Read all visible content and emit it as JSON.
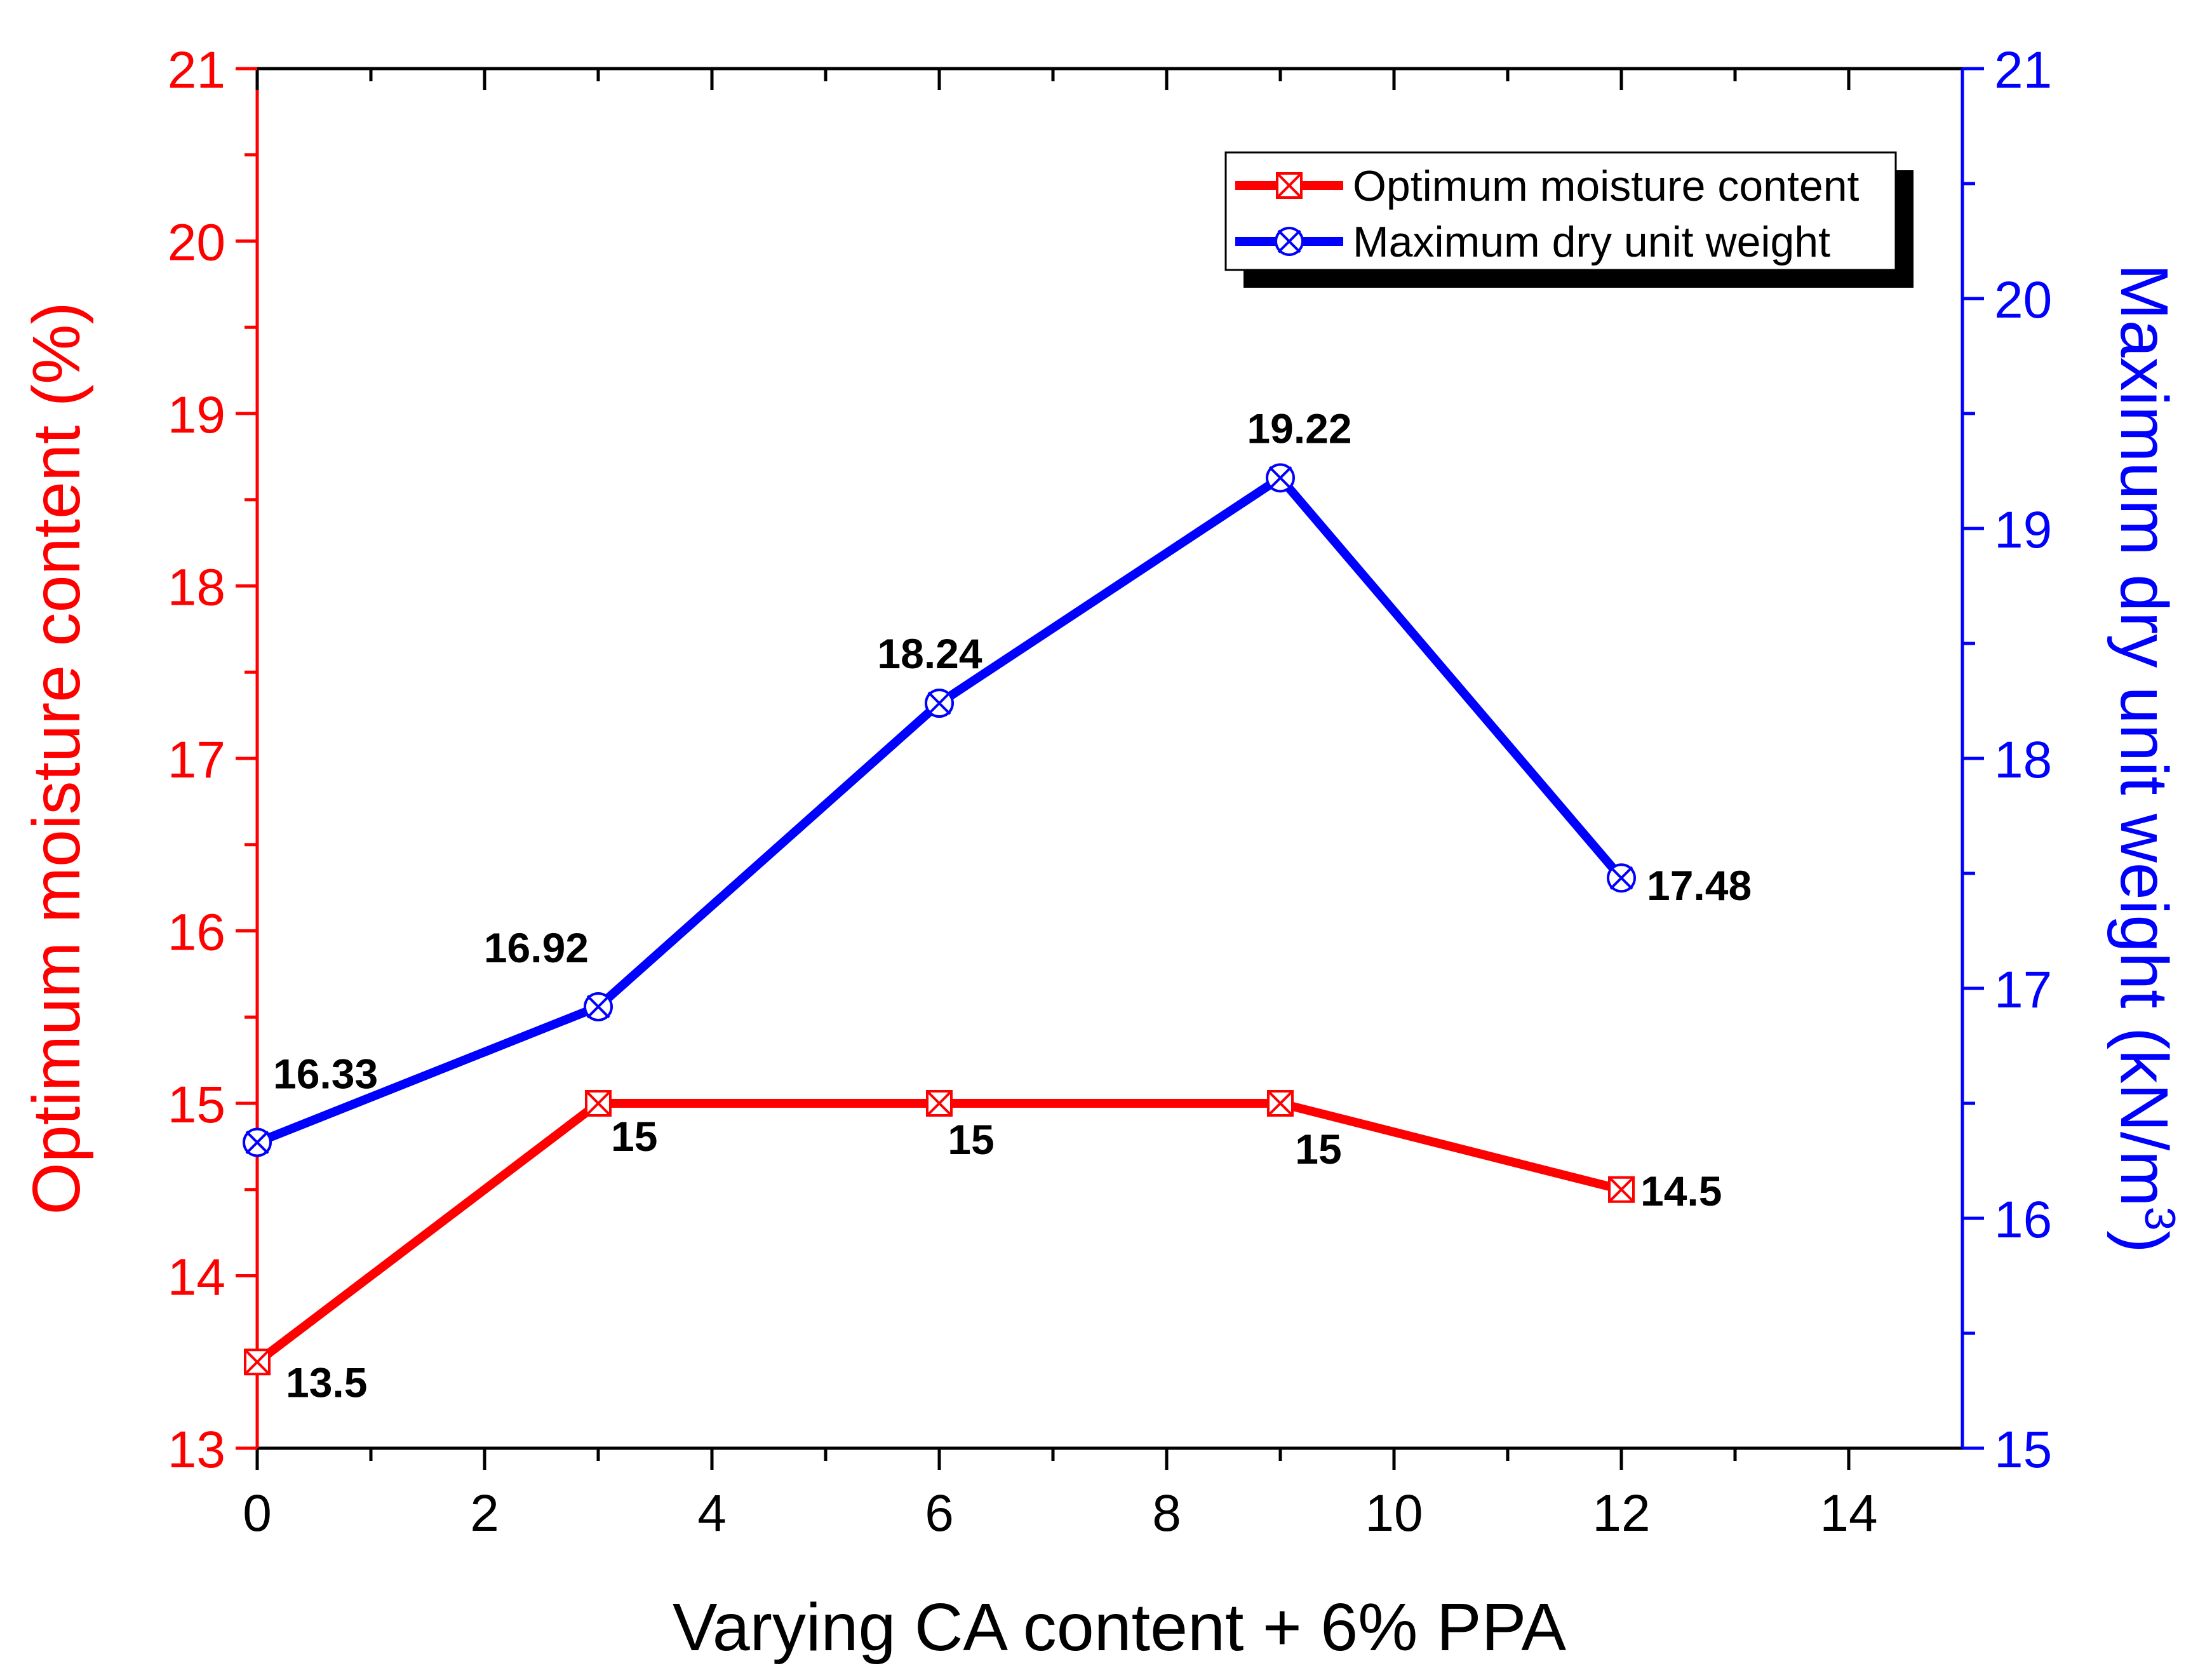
{
  "chart_data": {
    "type": "line",
    "xlabel": "Varying CA content + 6% PPA",
    "ylabel_left": "Optimum moisture content (%)",
    "ylabel_right_prefix": "Maximum dry unit weight (kN/m",
    "ylabel_right_sup": "3",
    "ylabel_right_suffix": ")",
    "xlim": [
      0,
      15
    ],
    "ylim_left": [
      13,
      21
    ],
    "ylim_right": [
      15,
      21
    ],
    "x_ticks": [
      0,
      2,
      4,
      6,
      8,
      10,
      12,
      14
    ],
    "x_tick_labels": [
      "0",
      "2",
      "4",
      "6",
      "8",
      "10",
      "12",
      "14"
    ],
    "y_left_ticks": [
      13,
      14,
      15,
      16,
      17,
      18,
      19,
      20,
      21
    ],
    "y_left_tick_labels": [
      "13",
      "14",
      "15",
      "16",
      "17",
      "18",
      "19",
      "20",
      "21"
    ],
    "y_right_ticks": [
      15,
      16,
      17,
      18,
      19,
      20,
      21
    ],
    "y_right_tick_labels": [
      "15",
      "16",
      "17",
      "18",
      "19",
      "20",
      "21"
    ],
    "grid": false,
    "legend_position": "top-right",
    "series": [
      {
        "name": "Optimum moisture content",
        "axis": "left",
        "color": "#ff0000",
        "marker": "square-x",
        "x": [
          0,
          3,
          6,
          9,
          12
        ],
        "y": [
          13.5,
          15,
          15,
          15,
          14.5
        ],
        "labels": [
          "13.5",
          "15",
          "15",
          "15",
          "14.5"
        ]
      },
      {
        "name": "Maximum dry unit weight",
        "axis": "right",
        "color": "#0000ff",
        "marker": "circle-x",
        "x": [
          0,
          3,
          6,
          9,
          12
        ],
        "y": [
          16.33,
          16.92,
          18.24,
          19.22,
          17.48
        ],
        "labels": [
          "16.33",
          "16.92",
          "18.24",
          "19.22",
          "17.48"
        ]
      }
    ]
  }
}
